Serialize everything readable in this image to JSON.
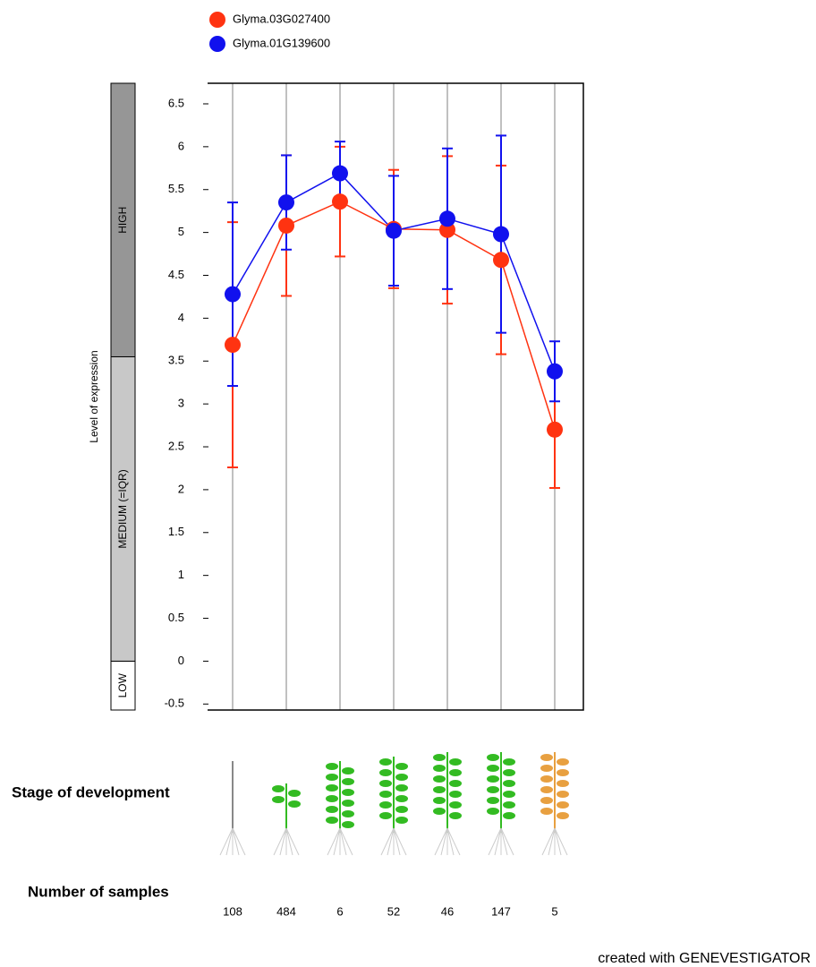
{
  "chart_data": {
    "type": "line",
    "y_label": "Level of expression",
    "categories": [
      null,
      null,
      null,
      null,
      null,
      null,
      null
    ],
    "series": [
      {
        "name": "Glyma.03G027400",
        "color": "#ff3311",
        "values": [
          3.69,
          5.08,
          5.36,
          5.04,
          5.03,
          4.68,
          2.7
        ],
        "errors": [
          1.43,
          0.82,
          0.64,
          0.69,
          0.86,
          1.1,
          0.68
        ]
      },
      {
        "name": "Glyma.01G139600",
        "color": "#1111ee",
        "values": [
          4.28,
          5.35,
          5.69,
          5.02,
          5.16,
          4.98,
          3.38
        ],
        "errors": [
          1.07,
          0.55,
          0.37,
          0.64,
          0.82,
          1.15,
          0.35
        ]
      }
    ],
    "ylim": [
      -0.57,
      6.74
    ],
    "yticks": [
      -0.5,
      0,
      0.5,
      1,
      1.5,
      2,
      2.5,
      3,
      3.5,
      4,
      4.5,
      5,
      5.5,
      6,
      6.5
    ],
    "expression_bands": [
      {
        "label": "LOW",
        "from": -0.57,
        "to": 0,
        "color": "#ffffff"
      },
      {
        "label": "MEDIUM (=IQR)",
        "from": 0,
        "to": 3.55,
        "color": "#c8c8c8"
      },
      {
        "label": "HIGH",
        "from": 3.55,
        "to": 6.74,
        "color": "#969696"
      }
    ],
    "stage_label": "Stage of development",
    "samples_label": "Number of samples",
    "sample_counts": [
      "108",
      "484",
      "6",
      "52",
      "46",
      "147",
      "5"
    ],
    "footer": "created with GENEVESTIGATOR"
  }
}
